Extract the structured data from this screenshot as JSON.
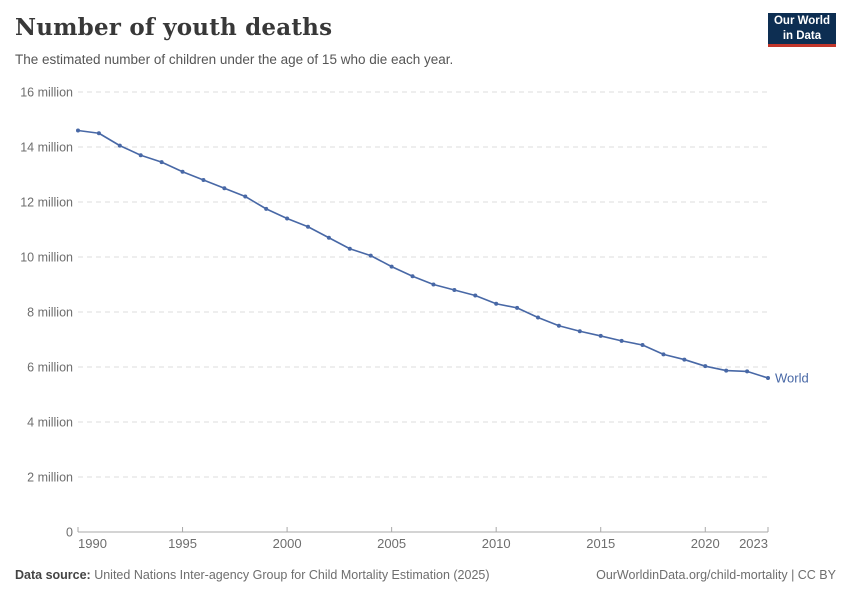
{
  "header": {
    "title": "Number of youth deaths",
    "subtitle": "The estimated number of children under the age of 15 who die each year."
  },
  "logo": {
    "line1": "Our World",
    "line2": "in Data",
    "bg_color": "#0d2e52",
    "accent_color": "#c2362b"
  },
  "chart_data": {
    "type": "line",
    "title": "Number of youth deaths",
    "subtitle": "The estimated number of children under the age of 15 who die each year.",
    "unit": "million deaths per year",
    "x": [
      1990,
      1991,
      1992,
      1993,
      1994,
      1995,
      1996,
      1997,
      1998,
      1999,
      2000,
      2001,
      2002,
      2003,
      2004,
      2005,
      2006,
      2007,
      2008,
      2009,
      2010,
      2011,
      2012,
      2013,
      2014,
      2015,
      2016,
      2017,
      2018,
      2019,
      2020,
      2021,
      2022,
      2023
    ],
    "series": [
      {
        "name": "World",
        "color": "#4868a6",
        "values_million": [
          14.6,
          14.5,
          14.05,
          13.7,
          13.45,
          13.1,
          12.8,
          12.5,
          12.2,
          11.75,
          11.4,
          11.1,
          10.7,
          10.3,
          10.05,
          9.65,
          9.3,
          9.0,
          8.8,
          8.6,
          8.3,
          8.15,
          7.8,
          7.5,
          7.3,
          7.13,
          6.95,
          6.8,
          6.46,
          6.27,
          6.03,
          5.87,
          5.84,
          5.6
        ]
      }
    ],
    "xlim": [
      1990,
      2023
    ],
    "ylim_million": [
      0,
      16
    ],
    "yticks": [
      {
        "value": 0,
        "label": "0"
      },
      {
        "value": 2,
        "label": "2 million"
      },
      {
        "value": 4,
        "label": "4 million"
      },
      {
        "value": 6,
        "label": "6 million"
      },
      {
        "value": 8,
        "label": "8 million"
      },
      {
        "value": 10,
        "label": "10 million"
      },
      {
        "value": 12,
        "label": "12 million"
      },
      {
        "value": 14,
        "label": "14 million"
      },
      {
        "value": 16,
        "label": "16 million"
      }
    ],
    "xticks": [
      {
        "value": 1990,
        "label": "1990"
      },
      {
        "value": 1995,
        "label": "1995"
      },
      {
        "value": 2000,
        "label": "2000"
      },
      {
        "value": 2005,
        "label": "2005"
      },
      {
        "value": 2010,
        "label": "2010"
      },
      {
        "value": 2015,
        "label": "2015"
      },
      {
        "value": 2020,
        "label": "2020"
      },
      {
        "value": 2023,
        "label": "2023"
      }
    ],
    "grid": "horizontal-dashed",
    "legend_position": "end-of-line"
  },
  "colors": {
    "line": "#4868a6",
    "gridline": "#dddddd",
    "axis": "#a8a8a8",
    "tick_label": "#6e6e6e"
  },
  "footer": {
    "source_label": "Data source:",
    "source_text": " United Nations Inter-agency Group for Child Mortality Estimation (2025)",
    "credit": "OurWorldinData.org/child-mortality | CC BY"
  }
}
